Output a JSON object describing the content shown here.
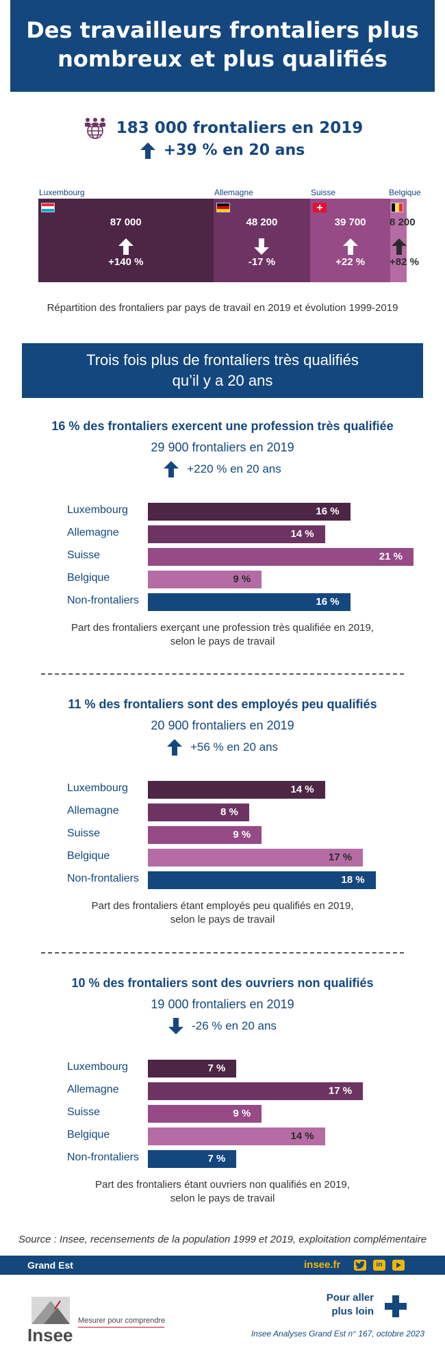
{
  "header": {
    "title_line1": "Des travailleurs frontaliers plus",
    "title_line2": "nombreux et plus qualifiés"
  },
  "overview": {
    "total": "183 000 frontaliers en 2019",
    "evolution": "+39 % en 20 ans",
    "caption": "Répartition des frontaliers par pays de travail en 2019 et évolution 1999-2019"
  },
  "chart_data": [
    {
      "type": "bar",
      "orientation": "stacked-horizontal",
      "title": "Répartition des frontaliers par pays de travail en 2019 et évolution 1999-2019",
      "categories": [
        "Luxembourg",
        "Allemagne",
        "Suisse",
        "Belgique"
      ],
      "values": [
        87000,
        48200,
        39700,
        8200
      ],
      "value_labels": [
        "87 000",
        "48 200",
        "39 700",
        "8 200"
      ],
      "evolution_pct": [
        140,
        -17,
        22,
        82
      ],
      "evolution_labels": [
        "+140 %",
        "-17 %",
        "+22 %",
        "+82 %"
      ],
      "colors": [
        "#4d2545",
        "#6d3463",
        "#964a86",
        "#b56ca4"
      ]
    },
    {
      "type": "bar",
      "orientation": "horizontal",
      "title": "16 % des frontaliers exercent une profession très qualifiée",
      "subtitle_count": "29 900 frontaliers en 2019",
      "subtitle_evolution": "+220 % en 20 ans",
      "trend": "up",
      "categories": [
        "Luxembourg",
        "Allemagne",
        "Suisse",
        "Belgique",
        "Non-frontaliers"
      ],
      "values": [
        16,
        14,
        21,
        9,
        16
      ],
      "xlim": [
        0,
        21
      ],
      "unit": "%",
      "caption_line1": "Part des frontaliers exerçant une profession très qualifiée en 2019,",
      "caption_line2": "selon le pays de travail"
    },
    {
      "type": "bar",
      "orientation": "horizontal",
      "title": "11 % des frontaliers sont des employés peu qualifiés",
      "subtitle_count": "20 900 frontaliers en 2019",
      "subtitle_evolution": "+56 % en 20 ans",
      "trend": "up",
      "categories": [
        "Luxembourg",
        "Allemagne",
        "Suisse",
        "Belgique",
        "Non-frontaliers"
      ],
      "values": [
        14,
        8,
        9,
        17,
        18
      ],
      "xlim": [
        0,
        21
      ],
      "unit": "%",
      "caption_line1": "Part des frontaliers étant employés peu qualifiés en 2019,",
      "caption_line2": "selon le pays de travail"
    },
    {
      "type": "bar",
      "orientation": "horizontal",
      "title": "10 % des frontaliers sont des ouvriers non qualifiés",
      "subtitle_count": "19 000 frontaliers en 2019",
      "subtitle_evolution": "-26 % en 20 ans",
      "trend": "down",
      "categories": [
        "Luxembourg",
        "Allemagne",
        "Suisse",
        "Belgique",
        "Non-frontaliers"
      ],
      "values": [
        7,
        17,
        9,
        14,
        7
      ],
      "xlim": [
        0,
        21
      ],
      "unit": "%",
      "caption_line1": "Part des frontaliers étant ouvriers non qualifiés en 2019,",
      "caption_line2": "selon le pays de travail"
    }
  ],
  "banner": {
    "line1": "Trois fois plus de frontaliers très qualifiés",
    "line2": "qu’il y a 20 ans"
  },
  "colors": {
    "luxembourg": "#4d2545",
    "allemagne": "#6d3463",
    "suisse": "#964a86",
    "belgique": "#b56ca4",
    "non_frontaliers": "#14477e",
    "accent": "#f2b705"
  },
  "footer": {
    "source": "Source : Insee, recensements de la population 1999 et 2019, exploitation complémentaire",
    "region": "Grand Est",
    "site": "insee.fr",
    "social_icons": [
      "twitter-icon",
      "linkedin-icon",
      "youtube-icon"
    ],
    "pour_line1": "Pour aller",
    "pour_line2": "plus loin",
    "logo": "Insee",
    "tagline": "Mesurer pour comprendre",
    "publication": "Insee Analyses Grand Est n° 167, octobre 2023"
  }
}
